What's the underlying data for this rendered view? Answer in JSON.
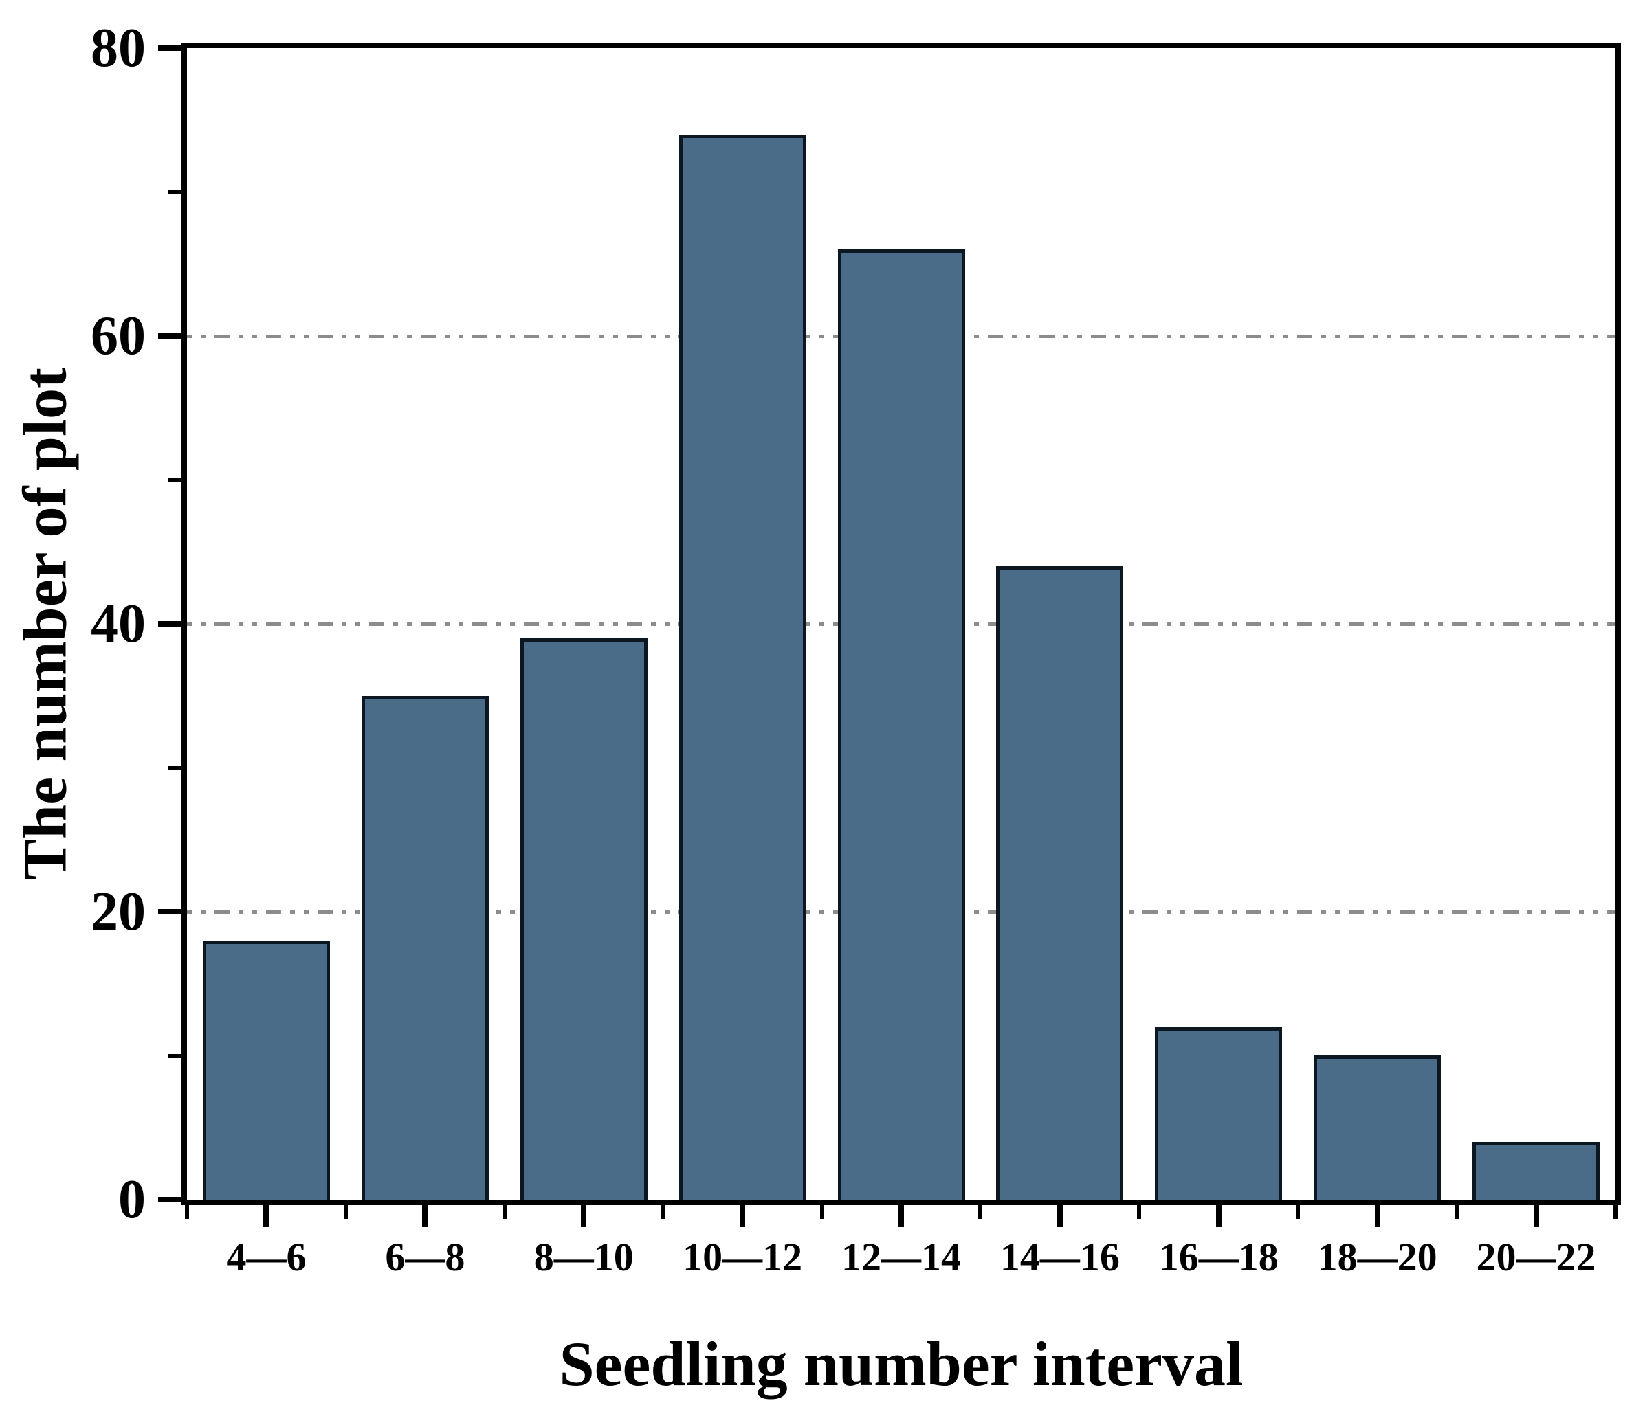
{
  "chart_data": {
    "type": "bar",
    "title": "",
    "categories": [
      "4—6",
      "6—8",
      "8—10",
      "10—12",
      "12—14",
      "14—16",
      "16—18",
      "18—20",
      "20—22"
    ],
    "values": [
      18,
      35,
      39,
      74,
      66,
      44,
      12,
      10,
      4
    ],
    "xlabel": "Seedling number interval",
    "ylabel": "The number of plot",
    "ylim": [
      0,
      80
    ],
    "ytick_values": [
      0,
      20,
      40,
      60,
      80
    ],
    "ytick_labels": [
      "0",
      "20",
      "40",
      "60",
      "80"
    ],
    "yminor_values": [
      10,
      30,
      50,
      70
    ],
    "gridline_values": [
      20,
      40,
      60
    ],
    "grid_style": "dot-dot-dash",
    "grid_on": true,
    "legend_position": "none",
    "colors": {
      "bar_fill": "#4A6C88",
      "bar_border": "#0D1722",
      "axis": "#000000",
      "grid": "#8C8C8C",
      "text": "#000000",
      "background": "#FFFFFF"
    }
  }
}
